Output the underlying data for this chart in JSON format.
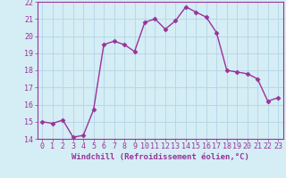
{
  "x": [
    0,
    1,
    2,
    3,
    4,
    5,
    6,
    7,
    8,
    9,
    10,
    11,
    12,
    13,
    14,
    15,
    16,
    17,
    18,
    19,
    20,
    21,
    22,
    23
  ],
  "y": [
    15.0,
    14.9,
    15.1,
    14.1,
    14.2,
    15.7,
    19.5,
    19.7,
    19.5,
    19.1,
    20.8,
    21.0,
    20.4,
    20.9,
    21.7,
    21.4,
    21.1,
    20.2,
    18.0,
    17.9,
    17.8,
    17.5,
    16.2,
    16.4
  ],
  "line_color": "#993399",
  "marker": "D",
  "marker_size": 2.5,
  "linewidth": 1.0,
  "xlabel": "Windchill (Refroidissement éolien,°C)",
  "xlabel_fontsize": 6.5,
  "ylim": [
    14,
    22
  ],
  "xlim": [
    -0.5,
    23.5
  ],
  "yticks": [
    14,
    15,
    16,
    17,
    18,
    19,
    20,
    21,
    22
  ],
  "xticks": [
    0,
    1,
    2,
    3,
    4,
    5,
    6,
    7,
    8,
    9,
    10,
    11,
    12,
    13,
    14,
    15,
    16,
    17,
    18,
    19,
    20,
    21,
    22,
    23
  ],
  "tick_fontsize": 6.0,
  "bg_color": "#d5edf5",
  "grid_color": "#b8d8e8",
  "axes_color": "#993399"
}
